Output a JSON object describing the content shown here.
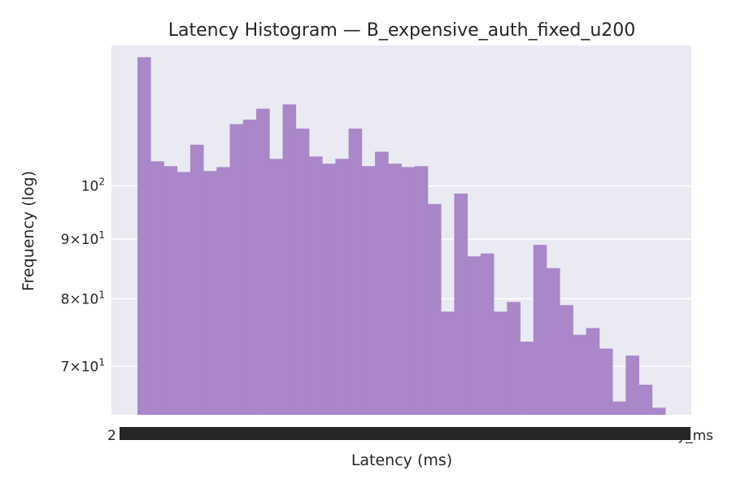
{
  "chart_data": {
    "type": "bar",
    "title": "Latency Histogram — B_expensive_auth_fixed_u200",
    "xlabel": "Latency (ms)",
    "ylabel": "Frequency (log)",
    "y_scale": "log",
    "ylim": [
      63.6,
      132
    ],
    "y_ticks": [
      {
        "value": 70,
        "mantissa": "7",
        "exponent": "1"
      },
      {
        "value": 80,
        "mantissa": "8",
        "exponent": "1"
      },
      {
        "value": 90,
        "mantissa": "9",
        "exponent": "1"
      },
      {
        "value": 100,
        "mantissa": "",
        "exponent": "2"
      }
    ],
    "x_tick_overflow_label": "y_ms",
    "x_tick_leading_char": "2",
    "grid": true,
    "bar_color": "#a987c9",
    "background_color": "#eaeaf2",
    "values": [
      129,
      105,
      104,
      102.8,
      108.5,
      103,
      103.8,
      113,
      114,
      116.5,
      105.5,
      117.5,
      112,
      106,
      104.5,
      105.5,
      112,
      104,
      107,
      104.5,
      103.8,
      104,
      96.5,
      78,
      98.5,
      87,
      87.5,
      78,
      79.5,
      73.5,
      89,
      85,
      79,
      74.5,
      75.5,
      72.5,
      65.3,
      71.5,
      67.5,
      64.5
    ]
  }
}
